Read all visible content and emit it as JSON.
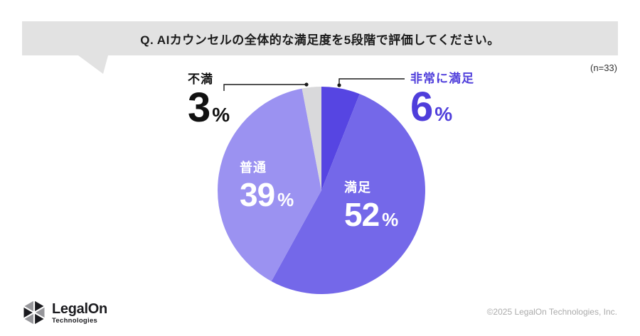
{
  "banner": {
    "question": "Q. AIカウンセルの全体的な満足度を5段階で評価してください。"
  },
  "meta": {
    "sample_size": "(n=33)"
  },
  "chart_data": {
    "type": "pie",
    "title": "AIカウンセルの全体的な満足度を5段階で評価してください。",
    "categories": [
      "非常に満足",
      "満足",
      "普通",
      "不満"
    ],
    "values": [
      6,
      52,
      39,
      3
    ],
    "unit": "%",
    "n": 33,
    "colors": [
      "#5645E2",
      "#7468E9",
      "#9B92F1",
      "#D9D9DB"
    ],
    "start_angle_deg": 0,
    "direction": "clockwise",
    "callout_colors": {
      "very_satisfied": "#4F3EDB",
      "dissatisfied": "#111111"
    },
    "inside_label_color": "#FFFFFF"
  },
  "footer": {
    "logo_title": "LegalOn",
    "logo_subtitle": "Technologies",
    "copyright": "©2025 LegalOn Technologies, Inc."
  }
}
